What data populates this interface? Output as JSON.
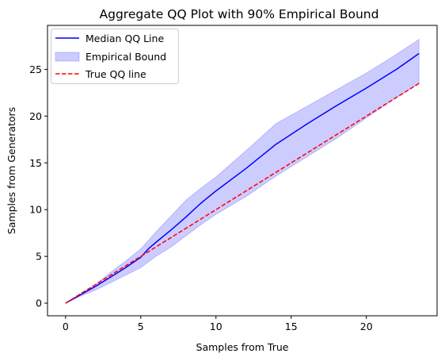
{
  "chart_data": {
    "type": "line",
    "title": "Aggregate QQ Plot with  90% Empirical Bound",
    "xlabel": "Samples from True",
    "ylabel": "Samples from Generators",
    "xlim": [
      -1.2,
      24.7
    ],
    "ylim": [
      -1.35,
      29.7
    ],
    "xticks": [
      0,
      5,
      10,
      15,
      20
    ],
    "yticks": [
      0,
      5,
      10,
      15,
      20,
      25
    ],
    "grid": false,
    "legend_position": "top-left",
    "series": [
      {
        "name": "Median QQ Line",
        "kind": "line",
        "color": "#0000ff",
        "linestyle": "solid",
        "x": [
          0,
          1,
          2,
          3,
          4,
          5,
          5.5,
          6,
          7,
          8,
          9,
          10,
          12,
          14,
          16,
          18,
          20,
          22,
          23.5
        ],
        "y": [
          0,
          0.9,
          1.8,
          2.8,
          3.8,
          4.9,
          5.8,
          6.5,
          7.8,
          9.2,
          10.7,
          12.0,
          14.4,
          17.0,
          19.1,
          21.1,
          23.0,
          25.0,
          26.7
        ]
      },
      {
        "name": "Empirical Bound",
        "kind": "band",
        "color": "#0000ff",
        "opacity": 0.2,
        "x": [
          0,
          1,
          2,
          3,
          4,
          5,
          6,
          7,
          8,
          9,
          10,
          12,
          14,
          16,
          18,
          20,
          22,
          23.5
        ],
        "lower": [
          0,
          0.75,
          1.4,
          2.2,
          3.0,
          3.8,
          5.0,
          6.0,
          7.2,
          8.4,
          9.5,
          11.4,
          13.6,
          15.6,
          17.6,
          19.8,
          22.0,
          23.5
        ],
        "upper": [
          0,
          1.0,
          2.0,
          3.3,
          4.5,
          5.8,
          7.6,
          9.3,
          11.0,
          12.3,
          13.5,
          16.3,
          19.2,
          21.0,
          22.8,
          24.6,
          26.6,
          28.2
        ]
      },
      {
        "name": "True QQ line",
        "kind": "line",
        "color": "#ff0000",
        "linestyle": "dashed",
        "x": [
          0,
          23.5
        ],
        "y": [
          0,
          23.5
        ]
      }
    ]
  }
}
